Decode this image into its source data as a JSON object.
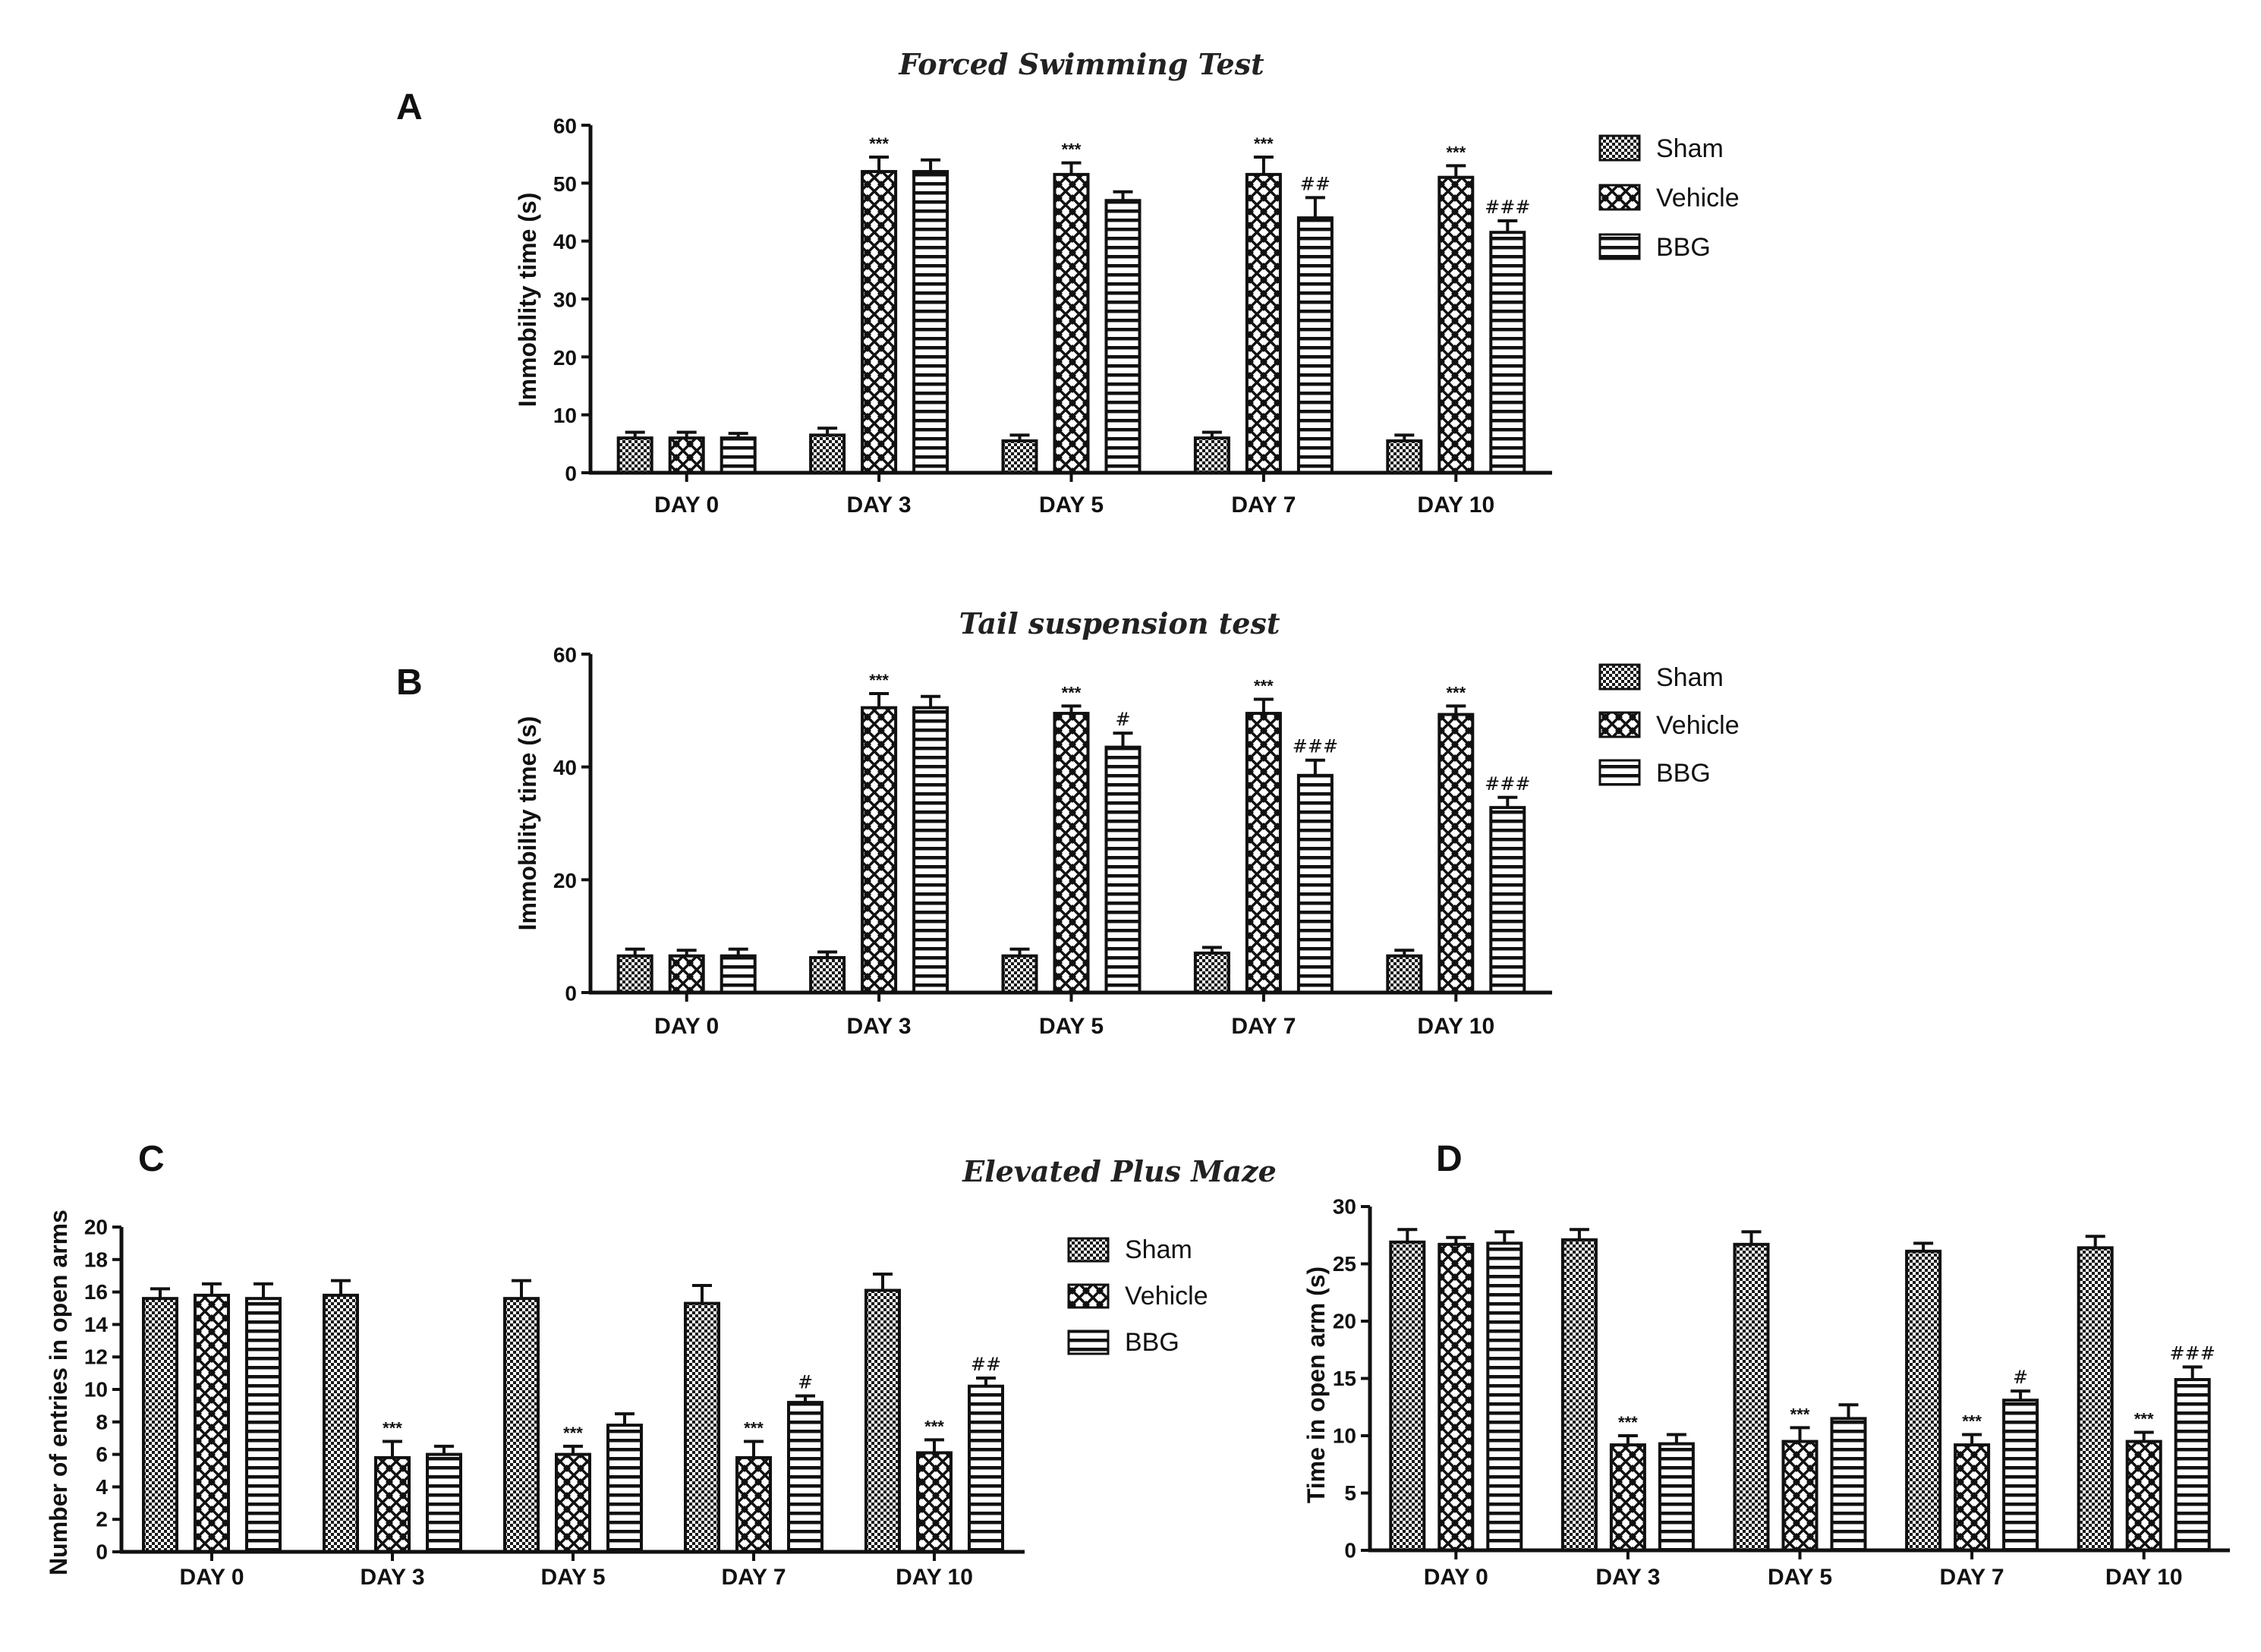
{
  "chart_data": [
    {
      "panel": "A",
      "type": "bar",
      "title": "Forced Swimming Test",
      "xlabel": "",
      "ylabel": "Immobility time (s)",
      "ylim": [
        0,
        60
      ],
      "yticks": [
        0,
        10,
        20,
        30,
        40,
        50,
        60
      ],
      "categories": [
        "DAY 0",
        "DAY 3",
        "DAY 5",
        "DAY 7",
        "DAY 10"
      ],
      "legend": "right",
      "series": [
        {
          "name": "Sham",
          "pattern": "checker",
          "values": [
            6,
            6.5,
            5.5,
            6,
            5.5
          ],
          "errors": [
            1,
            1.2,
            1,
            1,
            1
          ],
          "annotations": [
            "",
            "",
            "",
            "",
            ""
          ]
        },
        {
          "name": "Vehicle",
          "pattern": "diamond",
          "values": [
            6,
            52,
            51.5,
            51.5,
            51
          ],
          "errors": [
            1,
            2.5,
            2,
            3,
            2
          ],
          "annotations": [
            "",
            "***",
            "***",
            "***",
            "***"
          ]
        },
        {
          "name": "BBG",
          "pattern": "stripe",
          "values": [
            6,
            52,
            47,
            44,
            41.5
          ],
          "errors": [
            0.8,
            2,
            1.5,
            3.5,
            2
          ],
          "annotations": [
            "",
            "",
            "",
            "##",
            "###"
          ]
        }
      ]
    },
    {
      "panel": "B",
      "type": "bar",
      "title": "Tail suspension test",
      "xlabel": "",
      "ylabel": "Immobility time (s)",
      "ylim": [
        0,
        60
      ],
      "yticks": [
        0,
        20,
        40,
        60
      ],
      "categories": [
        "DAY 0",
        "DAY 3",
        "DAY 5",
        "DAY 7",
        "DAY 10"
      ],
      "legend": "right",
      "series": [
        {
          "name": "Sham",
          "pattern": "checker",
          "values": [
            6.5,
            6.2,
            6.5,
            7,
            6.5
          ],
          "errors": [
            1.2,
            1,
            1.2,
            1,
            1
          ],
          "annotations": [
            "",
            "",
            "",
            "",
            ""
          ]
        },
        {
          "name": "Vehicle",
          "pattern": "diamond",
          "values": [
            6.5,
            50.5,
            49.5,
            49.5,
            49.3
          ],
          "errors": [
            1,
            2.5,
            1.3,
            2.5,
            1.5
          ],
          "annotations": [
            "",
            "***",
            "***",
            "***",
            "***"
          ]
        },
        {
          "name": "BBG",
          "pattern": "stripe",
          "values": [
            6.5,
            50.5,
            43.5,
            38.5,
            32.8
          ],
          "errors": [
            1.2,
            2,
            2.5,
            2.7,
            1.8
          ],
          "annotations": [
            "",
            "",
            "#",
            "###",
            "###"
          ]
        }
      ]
    },
    {
      "panel": "C",
      "type": "bar",
      "title": "Elevated Plus Maze",
      "xlabel": "",
      "ylabel": "Number of entries in open arms",
      "ylim": [
        0,
        20
      ],
      "yticks": [
        0,
        2,
        4,
        6,
        8,
        10,
        12,
        14,
        16,
        18,
        20
      ],
      "categories": [
        "DAY 0",
        "DAY 3",
        "DAY 5",
        "DAY 7",
        "DAY 10"
      ],
      "legend": "right",
      "series": [
        {
          "name": "Sham",
          "pattern": "checker",
          "values": [
            15.6,
            15.8,
            15.6,
            15.3,
            16.1
          ],
          "errors": [
            0.6,
            0.9,
            1.1,
            1.1,
            1
          ],
          "annotations": [
            "",
            "",
            "",
            "",
            ""
          ]
        },
        {
          "name": "Vehicle",
          "pattern": "diamond",
          "values": [
            15.8,
            5.8,
            6,
            5.8,
            6.1
          ],
          "errors": [
            0.7,
            1,
            0.5,
            1,
            0.8
          ],
          "annotations": [
            "",
            "***",
            "***",
            "***",
            "***"
          ]
        },
        {
          "name": "BBG",
          "pattern": "stripe",
          "values": [
            15.6,
            6,
            7.8,
            9.2,
            10.2
          ],
          "errors": [
            0.9,
            0.5,
            0.7,
            0.4,
            0.5
          ],
          "annotations": [
            "",
            "",
            "",
            "#",
            "##"
          ]
        }
      ]
    },
    {
      "panel": "D",
      "type": "bar",
      "title": "",
      "xlabel": "",
      "ylabel": "Time in open arm (s)",
      "ylim": [
        0,
        30
      ],
      "yticks": [
        0,
        5,
        10,
        15,
        20,
        25,
        30
      ],
      "categories": [
        "DAY 0",
        "DAY 3",
        "DAY 5",
        "DAY 7",
        "DAY 10"
      ],
      "legend": "",
      "series": [
        {
          "name": "Sham",
          "pattern": "checker",
          "values": [
            26.9,
            27.1,
            26.7,
            26.1,
            26.4
          ],
          "errors": [
            1.1,
            0.9,
            1.1,
            0.7,
            1
          ],
          "annotations": [
            "",
            "",
            "",
            "",
            ""
          ]
        },
        {
          "name": "Vehicle",
          "pattern": "diamond",
          "values": [
            26.7,
            9.2,
            9.5,
            9.2,
            9.5
          ],
          "errors": [
            0.6,
            0.8,
            1.2,
            0.9,
            0.8
          ],
          "annotations": [
            "",
            "***",
            "***",
            "***",
            "***"
          ]
        },
        {
          "name": "BBG",
          "pattern": "stripe",
          "values": [
            26.8,
            9.3,
            11.5,
            13.1,
            14.9
          ],
          "errors": [
            1,
            0.8,
            1.2,
            0.8,
            1.1
          ],
          "annotations": [
            "",
            "",
            "",
            "#",
            "###"
          ]
        }
      ]
    }
  ]
}
